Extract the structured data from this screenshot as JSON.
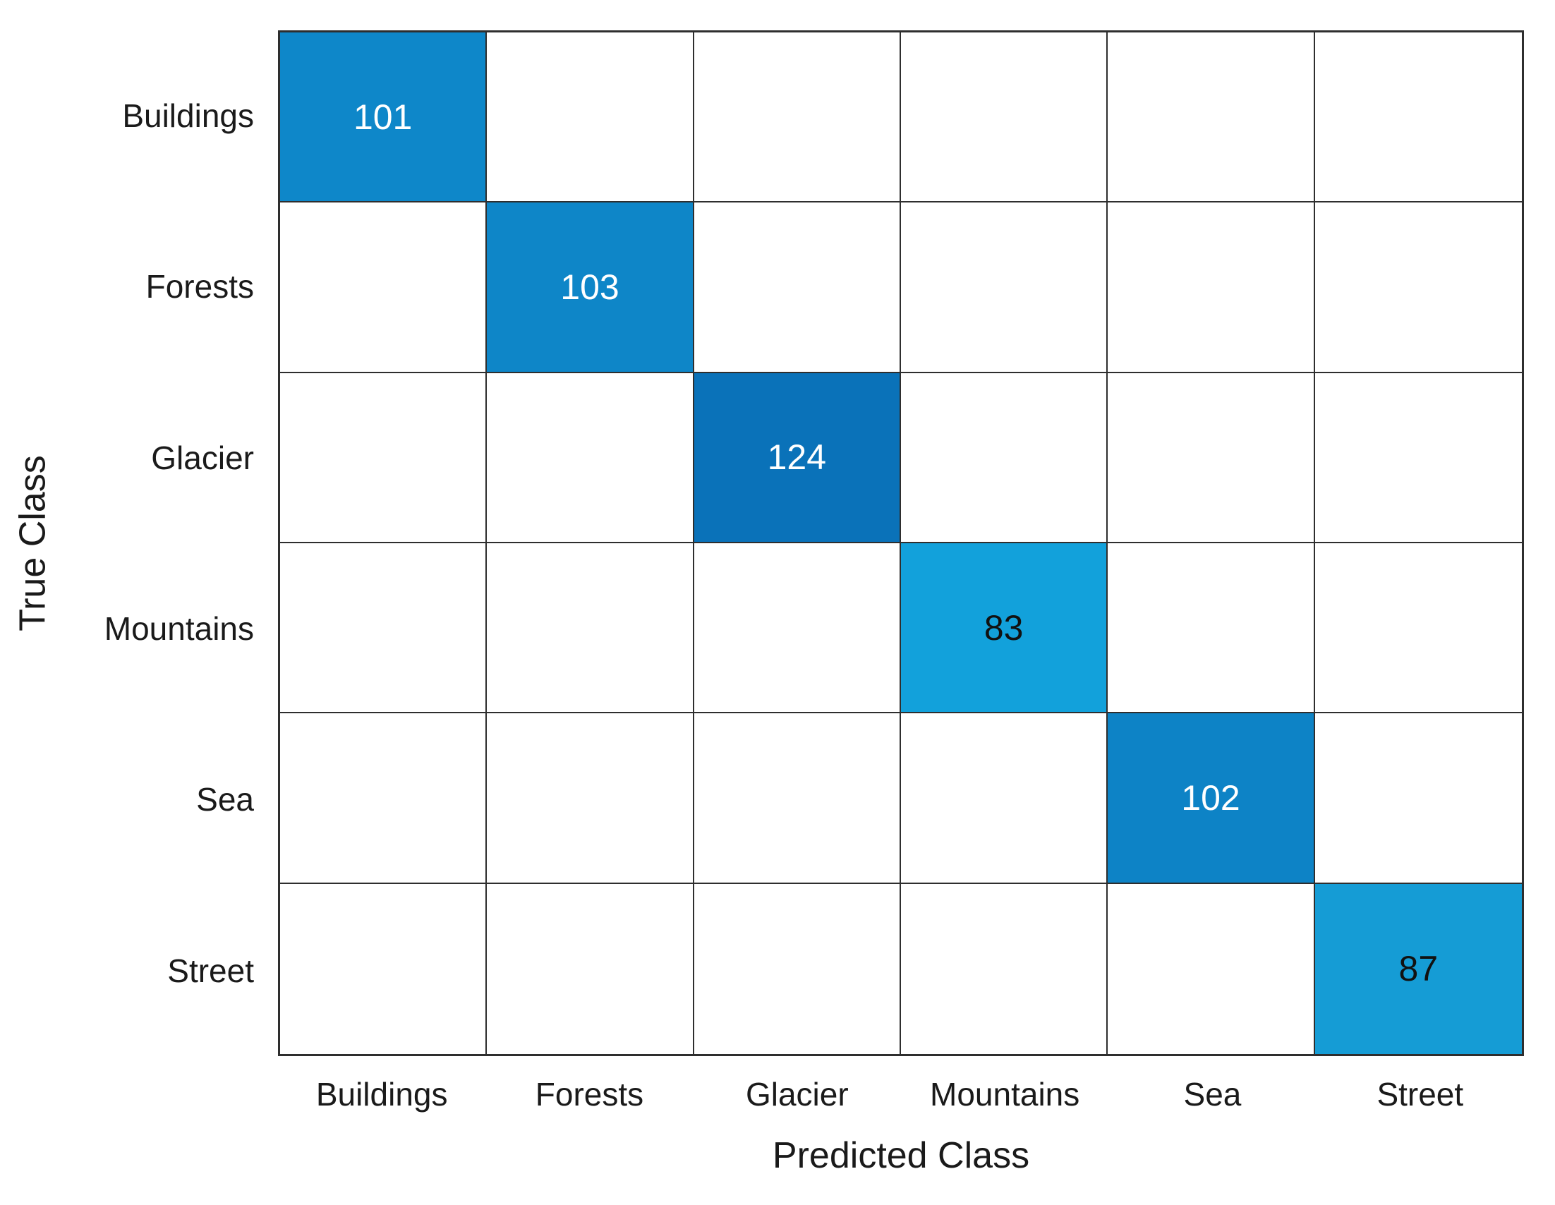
{
  "figure": {
    "type": "confusion-matrix",
    "x_axis_title": "Predicted Class",
    "y_axis_title": "True Class"
  },
  "chart_data": {
    "type": "heatmap",
    "subtype": "confusion-matrix",
    "title": "",
    "xlabel": "Predicted Class",
    "ylabel": "True Class",
    "categories_x": [
      "Buildings",
      "Forests",
      "Glacier",
      "Mountains",
      "Sea",
      "Street"
    ],
    "categories_y": [
      "Buildings",
      "Forests",
      "Glacier",
      "Mountains",
      "Sea",
      "Street"
    ],
    "grid": "on",
    "legend": "none",
    "matrix": [
      [
        101,
        null,
        null,
        null,
        null,
        null
      ],
      [
        null,
        103,
        null,
        null,
        null,
        null
      ],
      [
        null,
        null,
        124,
        null,
        null,
        null
      ],
      [
        null,
        null,
        null,
        83,
        null,
        null
      ],
      [
        null,
        null,
        null,
        null,
        102,
        null
      ],
      [
        null,
        null,
        null,
        null,
        null,
        87
      ]
    ],
    "diagonal_values": [
      101,
      103,
      124,
      83,
      102,
      87
    ],
    "filled_cells": [
      {
        "row": 0,
        "col": 0,
        "value": "101",
        "bg": "#0E87C9",
        "fg": "#FFFFFF"
      },
      {
        "row": 1,
        "col": 1,
        "value": "103",
        "bg": "#0E86C8",
        "fg": "#FFFFFF"
      },
      {
        "row": 2,
        "col": 2,
        "value": "124",
        "bg": "#0A72B9",
        "fg": "#FFFFFF"
      },
      {
        "row": 3,
        "col": 3,
        "value": "83",
        "bg": "#12A1DB",
        "fg": "#111111"
      },
      {
        "row": 4,
        "col": 4,
        "value": "102",
        "bg": "#0D83C6",
        "fg": "#FFFFFF"
      },
      {
        "row": 5,
        "col": 5,
        "value": "87",
        "bg": "#159CD5",
        "fg": "#111111"
      }
    ],
    "empty_cell_color": "#FFFFFF",
    "grid_line_color": "#2E2E2E",
    "label_color": "#1A1A1A"
  }
}
